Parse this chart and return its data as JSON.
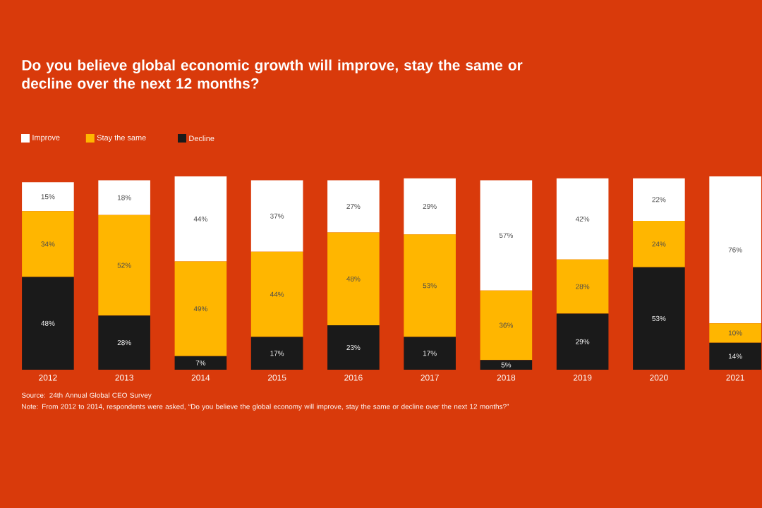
{
  "chart_data": {
    "type": "bar",
    "stacked": true,
    "title": "Do you believe global economic growth will improve, stay the same or decline over the next 12 months?",
    "categories": [
      "2012",
      "2013",
      "2014",
      "2015",
      "2016",
      "2017",
      "2018",
      "2019",
      "2020",
      "2021"
    ],
    "series": [
      {
        "name": "Decline",
        "color": "#1a1a1a",
        "values": [
          48,
          28,
          7,
          17,
          23,
          17,
          5,
          29,
          53,
          14
        ],
        "value_labels": [
          "48%",
          "28%",
          "7%",
          "17%",
          "23%",
          "17%",
          "5%",
          "29%",
          "53%",
          "14%"
        ]
      },
      {
        "name": "Stay the same",
        "color": "#ffb600",
        "values": [
          34,
          52,
          49,
          44,
          48,
          53,
          36,
          28,
          24,
          10
        ],
        "value_labels": [
          "34%",
          "52%",
          "49%",
          "44%",
          "48%",
          "53%",
          "36%",
          "28%",
          "24%",
          "10%"
        ]
      },
      {
        "name": "Improve",
        "color": "#ffffff",
        "values": [
          15,
          18,
          44,
          37,
          27,
          29,
          57,
          42,
          22,
          76
        ],
        "value_labels": [
          "15%",
          "18%",
          "44%",
          "37%",
          "27%",
          "29%",
          "57%",
          "42%",
          "22%",
          "76%"
        ]
      }
    ],
    "legend": "top left",
    "annotations": [
      "Source: 24th Annual Global CEO Survey",
      "Note: From 2012 to 2014, respondents were asked, “Do you believe the global economy will improve, stay the same or decline over the next 12 months?”"
    ]
  }
}
